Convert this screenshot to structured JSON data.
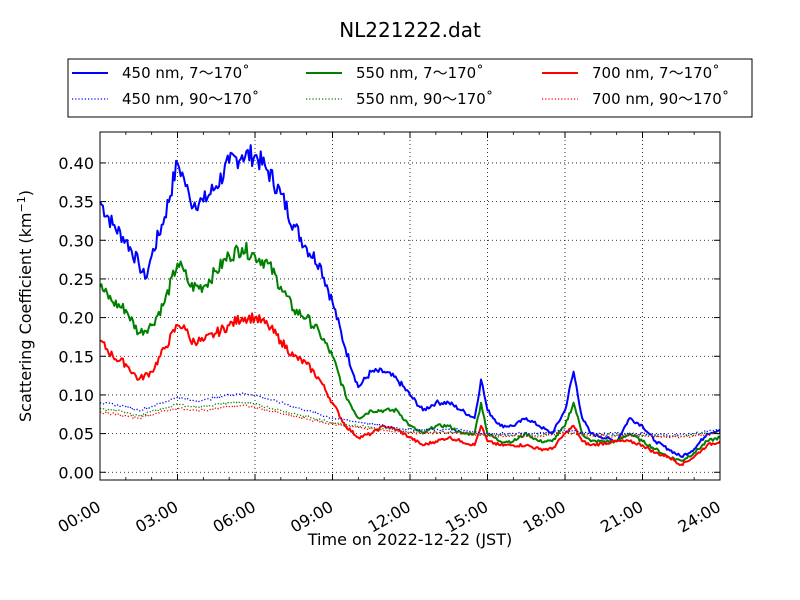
{
  "chart_data": {
    "type": "line",
    "title": "NL221222.dat",
    "xlabel": "Time on 2022-12-22 (JST)",
    "ylabel_main": "Scattering Coefficient (km",
    "ylabel_sup": "−1",
    "ylabel_end": ")",
    "xlim": [
      "00:00",
      "24:00"
    ],
    "ylim": [
      -0.01,
      0.44
    ],
    "x_ticks": [
      "00:00",
      "03:00",
      "06:00",
      "09:00",
      "12:00",
      "15:00",
      "18:00",
      "21:00",
      "24:00"
    ],
    "y_ticks": [
      "0.00",
      "0.05",
      "0.10",
      "0.15",
      "0.20",
      "0.25",
      "0.30",
      "0.35",
      "0.40"
    ],
    "grid": true,
    "legend_position": "top, above plot, 3 columns",
    "colors": {
      "blue": "#0000ff",
      "green": "#008000",
      "red": "#ff0000"
    },
    "series": [
      {
        "name": "450 nm, 7～170˚",
        "color": "#0000ff",
        "style": "solid",
        "points": [
          [
            "00:00",
            0.35
          ],
          [
            "00:30",
            0.32
          ],
          [
            "01:00",
            0.3
          ],
          [
            "01:30",
            0.27
          ],
          [
            "01:45",
            0.25
          ],
          [
            "02:00",
            0.28
          ],
          [
            "02:30",
            0.33
          ],
          [
            "03:00",
            0.4
          ],
          [
            "03:15",
            0.38
          ],
          [
            "03:30",
            0.35
          ],
          [
            "04:00",
            0.35
          ],
          [
            "04:30",
            0.37
          ],
          [
            "05:00",
            0.4
          ],
          [
            "05:30",
            0.41
          ],
          [
            "06:00",
            0.41
          ],
          [
            "06:30",
            0.39
          ],
          [
            "07:00",
            0.36
          ],
          [
            "07:30",
            0.32
          ],
          [
            "08:00",
            0.29
          ],
          [
            "08:30",
            0.27
          ],
          [
            "09:00",
            0.22
          ],
          [
            "09:30",
            0.16
          ],
          [
            "10:00",
            0.11
          ],
          [
            "10:30",
            0.13
          ],
          [
            "11:00",
            0.13
          ],
          [
            "11:30",
            0.12
          ],
          [
            "12:00",
            0.1
          ],
          [
            "12:30",
            0.08
          ],
          [
            "13:00",
            0.09
          ],
          [
            "13:30",
            0.09
          ],
          [
            "14:00",
            0.08
          ],
          [
            "14:30",
            0.07
          ],
          [
            "14:45",
            0.12
          ],
          [
            "15:00",
            0.08
          ],
          [
            "15:30",
            0.06
          ],
          [
            "16:00",
            0.06
          ],
          [
            "16:30",
            0.07
          ],
          [
            "17:00",
            0.06
          ],
          [
            "17:30",
            0.05
          ],
          [
            "18:00",
            0.08
          ],
          [
            "18:20",
            0.13
          ],
          [
            "18:40",
            0.07
          ],
          [
            "19:00",
            0.05
          ],
          [
            "20:00",
            0.04
          ],
          [
            "20:30",
            0.07
          ],
          [
            "21:00",
            0.06
          ],
          [
            "21:30",
            0.04
          ],
          [
            "22:00",
            0.03
          ],
          [
            "22:30",
            0.02
          ],
          [
            "23:00",
            0.03
          ],
          [
            "23:30",
            0.05
          ],
          [
            "24:00",
            0.055
          ]
        ]
      },
      {
        "name": "550 nm, 7～170˚",
        "color": "#008000",
        "style": "solid",
        "points": [
          [
            "00:00",
            0.24
          ],
          [
            "00:30",
            0.22
          ],
          [
            "01:00",
            0.21
          ],
          [
            "01:30",
            0.18
          ],
          [
            "02:00",
            0.19
          ],
          [
            "02:30",
            0.22
          ],
          [
            "03:00",
            0.27
          ],
          [
            "03:15",
            0.26
          ],
          [
            "03:30",
            0.24
          ],
          [
            "04:00",
            0.24
          ],
          [
            "04:30",
            0.26
          ],
          [
            "05:00",
            0.28
          ],
          [
            "05:30",
            0.29
          ],
          [
            "06:00",
            0.28
          ],
          [
            "06:30",
            0.27
          ],
          [
            "07:00",
            0.24
          ],
          [
            "07:30",
            0.21
          ],
          [
            "08:00",
            0.2
          ],
          [
            "08:30",
            0.18
          ],
          [
            "09:00",
            0.15
          ],
          [
            "09:30",
            0.1
          ],
          [
            "10:00",
            0.07
          ],
          [
            "10:30",
            0.08
          ],
          [
            "11:00",
            0.08
          ],
          [
            "11:30",
            0.08
          ],
          [
            "12:00",
            0.06
          ],
          [
            "12:30",
            0.05
          ],
          [
            "13:00",
            0.06
          ],
          [
            "13:30",
            0.06
          ],
          [
            "14:00",
            0.05
          ],
          [
            "14:30",
            0.05
          ],
          [
            "14:45",
            0.09
          ],
          [
            "15:00",
            0.05
          ],
          [
            "15:30",
            0.04
          ],
          [
            "16:00",
            0.04
          ],
          [
            "16:30",
            0.05
          ],
          [
            "17:00",
            0.04
          ],
          [
            "17:30",
            0.04
          ],
          [
            "18:00",
            0.06
          ],
          [
            "18:20",
            0.09
          ],
          [
            "18:40",
            0.05
          ],
          [
            "19:00",
            0.04
          ],
          [
            "20:00",
            0.04
          ],
          [
            "20:30",
            0.05
          ],
          [
            "21:00",
            0.04
          ],
          [
            "21:30",
            0.03
          ],
          [
            "22:00",
            0.02
          ],
          [
            "22:30",
            0.015
          ],
          [
            "23:00",
            0.025
          ],
          [
            "23:30",
            0.04
          ],
          [
            "24:00",
            0.045
          ]
        ]
      },
      {
        "name": "700 nm, 7～170˚",
        "color": "#ff0000",
        "style": "solid",
        "points": [
          [
            "00:00",
            0.17
          ],
          [
            "00:30",
            0.15
          ],
          [
            "01:00",
            0.14
          ],
          [
            "01:30",
            0.12
          ],
          [
            "02:00",
            0.13
          ],
          [
            "02:30",
            0.16
          ],
          [
            "03:00",
            0.19
          ],
          [
            "03:15",
            0.19
          ],
          [
            "03:30",
            0.17
          ],
          [
            "04:00",
            0.17
          ],
          [
            "04:30",
            0.18
          ],
          [
            "05:00",
            0.19
          ],
          [
            "05:30",
            0.2
          ],
          [
            "06:00",
            0.2
          ],
          [
            "06:30",
            0.19
          ],
          [
            "07:00",
            0.17
          ],
          [
            "07:30",
            0.15
          ],
          [
            "08:00",
            0.14
          ],
          [
            "08:30",
            0.12
          ],
          [
            "09:00",
            0.09
          ],
          [
            "09:30",
            0.06
          ],
          [
            "10:00",
            0.045
          ],
          [
            "10:30",
            0.05
          ],
          [
            "11:00",
            0.06
          ],
          [
            "11:30",
            0.055
          ],
          [
            "12:00",
            0.045
          ],
          [
            "12:30",
            0.035
          ],
          [
            "13:00",
            0.04
          ],
          [
            "13:30",
            0.045
          ],
          [
            "14:00",
            0.04
          ],
          [
            "14:30",
            0.035
          ],
          [
            "14:45",
            0.06
          ],
          [
            "15:00",
            0.04
          ],
          [
            "15:30",
            0.035
          ],
          [
            "16:00",
            0.035
          ],
          [
            "16:30",
            0.035
          ],
          [
            "17:00",
            0.03
          ],
          [
            "17:30",
            0.03
          ],
          [
            "18:00",
            0.05
          ],
          [
            "18:20",
            0.06
          ],
          [
            "18:40",
            0.04
          ],
          [
            "19:00",
            0.035
          ],
          [
            "20:00",
            0.04
          ],
          [
            "20:30",
            0.04
          ],
          [
            "21:00",
            0.035
          ],
          [
            "21:30",
            0.025
          ],
          [
            "22:00",
            0.02
          ],
          [
            "22:30",
            0.01
          ],
          [
            "23:00",
            0.02
          ],
          [
            "23:30",
            0.035
          ],
          [
            "24:00",
            0.04
          ]
        ]
      },
      {
        "name": "450 nm, 90～170˚",
        "color": "#0000ff",
        "style": "dotted",
        "points": [
          [
            "00:00",
            0.09
          ],
          [
            "01:00",
            0.085
          ],
          [
            "01:30",
            0.08
          ],
          [
            "02:00",
            0.085
          ],
          [
            "03:00",
            0.097
          ],
          [
            "03:30",
            0.093
          ],
          [
            "04:00",
            0.093
          ],
          [
            "05:00",
            0.1
          ],
          [
            "05:30",
            0.102
          ],
          [
            "06:00",
            0.1
          ],
          [
            "07:00",
            0.09
          ],
          [
            "08:00",
            0.08
          ],
          [
            "09:00",
            0.07
          ],
          [
            "10:00",
            0.065
          ],
          [
            "11:00",
            0.06
          ],
          [
            "12:00",
            0.055
          ],
          [
            "13:00",
            0.055
          ],
          [
            "14:00",
            0.055
          ],
          [
            "15:00",
            0.05
          ],
          [
            "16:00",
            0.05
          ],
          [
            "17:00",
            0.05
          ],
          [
            "18:00",
            0.055
          ],
          [
            "19:00",
            0.05
          ],
          [
            "20:00",
            0.05
          ],
          [
            "21:00",
            0.05
          ],
          [
            "22:00",
            0.048
          ],
          [
            "23:00",
            0.05
          ],
          [
            "24:00",
            0.055
          ]
        ]
      },
      {
        "name": "550 nm, 90～170˚",
        "color": "#008000",
        "style": "dotted",
        "points": [
          [
            "00:00",
            0.082
          ],
          [
            "01:00",
            0.078
          ],
          [
            "01:30",
            0.073
          ],
          [
            "02:00",
            0.078
          ],
          [
            "03:00",
            0.088
          ],
          [
            "03:30",
            0.085
          ],
          [
            "04:00",
            0.085
          ],
          [
            "05:00",
            0.09
          ],
          [
            "05:30",
            0.09
          ],
          [
            "06:00",
            0.088
          ],
          [
            "07:00",
            0.08
          ],
          [
            "08:00",
            0.072
          ],
          [
            "09:00",
            0.064
          ],
          [
            "10:00",
            0.06
          ],
          [
            "11:00",
            0.056
          ],
          [
            "12:00",
            0.052
          ],
          [
            "13:00",
            0.052
          ],
          [
            "14:00",
            0.052
          ],
          [
            "15:00",
            0.048
          ],
          [
            "16:00",
            0.048
          ],
          [
            "17:00",
            0.048
          ],
          [
            "18:00",
            0.052
          ],
          [
            "19:00",
            0.048
          ],
          [
            "20:00",
            0.048
          ],
          [
            "21:00",
            0.048
          ],
          [
            "22:00",
            0.046
          ],
          [
            "23:00",
            0.048
          ],
          [
            "24:00",
            0.052
          ]
        ]
      },
      {
        "name": "700 nm, 90～170˚",
        "color": "#ff0000",
        "style": "dotted",
        "points": [
          [
            "00:00",
            0.078
          ],
          [
            "01:00",
            0.073
          ],
          [
            "01:30",
            0.07
          ],
          [
            "02:00",
            0.075
          ],
          [
            "03:00",
            0.083
          ],
          [
            "03:30",
            0.08
          ],
          [
            "04:00",
            0.08
          ],
          [
            "05:00",
            0.085
          ],
          [
            "05:30",
            0.086
          ],
          [
            "06:00",
            0.084
          ],
          [
            "07:00",
            0.076
          ],
          [
            "08:00",
            0.069
          ],
          [
            "09:00",
            0.062
          ],
          [
            "10:00",
            0.058
          ],
          [
            "11:00",
            0.054
          ],
          [
            "12:00",
            0.051
          ],
          [
            "13:00",
            0.051
          ],
          [
            "14:00",
            0.051
          ],
          [
            "15:00",
            0.047
          ],
          [
            "16:00",
            0.047
          ],
          [
            "17:00",
            0.047
          ],
          [
            "18:00",
            0.051
          ],
          [
            "19:00",
            0.047
          ],
          [
            "20:00",
            0.047
          ],
          [
            "21:00",
            0.047
          ],
          [
            "22:00",
            0.045
          ],
          [
            "23:00",
            0.047
          ],
          [
            "24:00",
            0.05
          ]
        ]
      }
    ]
  }
}
